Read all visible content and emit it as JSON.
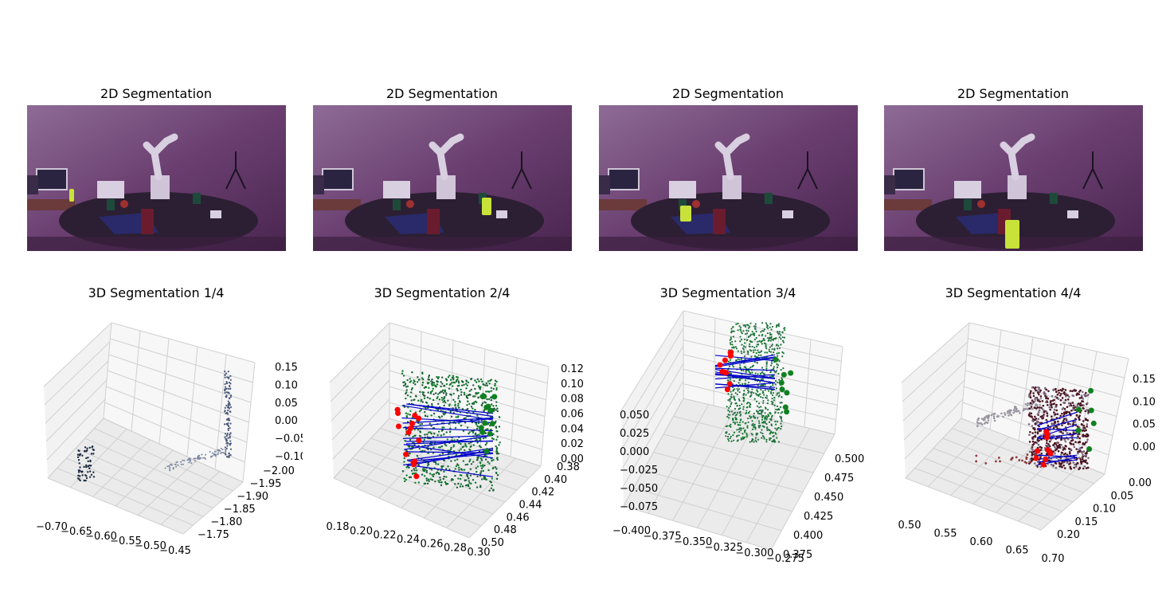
{
  "figure": {
    "top_titles": [
      "2D Segmentation",
      "2D Segmentation",
      "2D Segmentation",
      "2D Segmentation"
    ],
    "bottom_titles": [
      "3D Segmentation 1/4",
      "3D Segmentation 2/4",
      "3D Segmentation 3/4",
      "3D Segmentation 4/4"
    ]
  },
  "colors": {
    "overlay": "#5a2b5e",
    "table": "#2c1f33",
    "highlight": "#c8e23a",
    "green_points": "#0f7a2a",
    "red_points": "#ff0000",
    "blue_lines": "#0000cc",
    "dark_points": "#1c2b40",
    "maroon_points": "#4a1420"
  },
  "chart_data": [
    {
      "type": "scatter",
      "title": "3D Segmentation 1/4",
      "x_ticks": [
        "−0.70",
        "−0.65",
        "−0.60",
        "−0.55",
        "−0.50",
        "−0.45"
      ],
      "y_ticks": [
        "−1.75",
        "−1.80",
        "−1.85",
        "−1.90",
        "−1.95",
        "−2.00"
      ],
      "z_ticks": [
        "0.15",
        "0.10",
        "0.05",
        "0.00",
        "−0.05",
        "−0.10"
      ],
      "grid": true
    },
    {
      "type": "scatter",
      "title": "3D Segmentation 2/4",
      "x_ticks": [
        "0.18",
        "0.20",
        "0.22",
        "0.24",
        "0.26",
        "0.28",
        "0.30"
      ],
      "y_ticks": [
        "0.50",
        "0.48",
        "0.46",
        "0.44",
        "0.42",
        "0.40",
        "0.38"
      ],
      "z_ticks": [
        "0.12",
        "0.10",
        "0.08",
        "0.06",
        "0.04",
        "0.02",
        "0.00"
      ],
      "grid": true
    },
    {
      "type": "scatter",
      "title": "3D Segmentation 3/4",
      "x_ticks": [
        "−0.400",
        "−0.375",
        "−0.350",
        "−0.325",
        "−0.300",
        "−0.275"
      ],
      "y_ticks": [
        "0.375",
        "0.400",
        "0.425",
        "0.450",
        "0.475",
        "0.500"
      ],
      "z_ticks": [
        "0.050",
        "0.025",
        "0.000",
        "−0.025",
        "−0.050",
        "−0.075"
      ],
      "grid": true
    },
    {
      "type": "scatter",
      "title": "3D Segmentation 4/4",
      "x_ticks": [
        "0.50",
        "0.55",
        "0.60",
        "0.65",
        "0.70"
      ],
      "y_ticks": [
        "0.20",
        "0.15",
        "0.10",
        "0.05",
        "0.00"
      ],
      "z_ticks": [
        "0.15",
        "0.10",
        "0.05",
        "0.00"
      ],
      "grid": true
    }
  ]
}
